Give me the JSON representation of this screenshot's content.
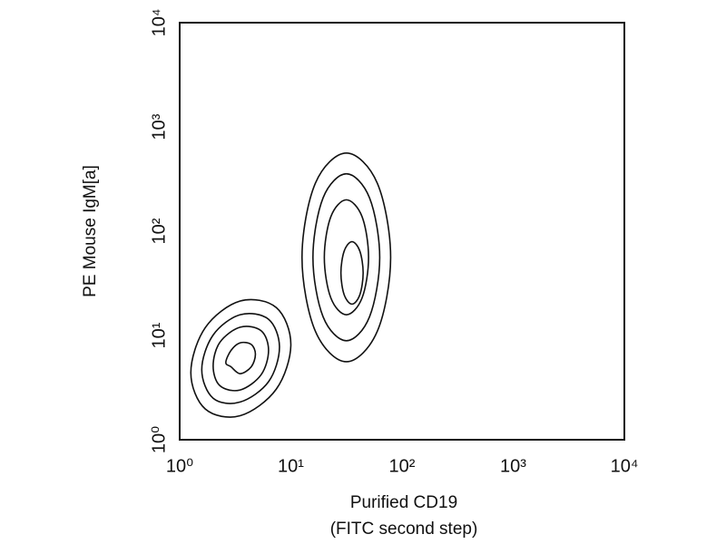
{
  "chart_data": {
    "type": "contour",
    "xlabel": [
      "Purified CD19",
      "(FITC second step)"
    ],
    "ylabel": "PE Mouse IgM[a]",
    "xscale": "log",
    "yscale": "log",
    "xlim": [
      1,
      10000
    ],
    "ylim": [
      1,
      10000
    ],
    "xticks": [
      {
        "value": 1,
        "label": "10⁰"
      },
      {
        "value": 10,
        "label": "10¹"
      },
      {
        "value": 100,
        "label": "10²"
      },
      {
        "value": 1000,
        "label": "10³"
      },
      {
        "value": 10000,
        "label": "10⁴"
      }
    ],
    "yticks": [
      {
        "value": 1,
        "label": "10⁰"
      },
      {
        "value": 10,
        "label": "10¹"
      },
      {
        "value": 100,
        "label": "10²"
      },
      {
        "value": 1000,
        "label": "10³"
      },
      {
        "value": 10000,
        "label": "10⁴"
      }
    ],
    "color": "#111111",
    "contours": [
      {
        "x": [
          10,
          7.4,
          3.5,
          1.7,
          1.26,
          1.7,
          3.5,
          7.4
        ],
        "y": [
          8.2,
          18.5,
          21.4,
          11.9,
          4.4,
          1.97,
          1.7,
          3.06
        ]
      },
      {
        "x": [
          7.9,
          6.3,
          3.5,
          2.0,
          1.58,
          2.0,
          3.5,
          6.3
        ],
        "y": [
          7.7,
          14.3,
          15.8,
          10.1,
          4.7,
          2.5,
          2.3,
          3.6
        ]
      },
      {
        "x": [
          6.3,
          5.4,
          3.5,
          2.3,
          2.0,
          2.3,
          3.5,
          5.4
        ],
        "y": [
          7.2,
          11.1,
          12.0,
          8.6,
          5.1,
          3.3,
          3.0,
          4.2
        ]
      },
      {
        "x": [
          4.8,
          4.4,
          3.5,
          2.9,
          2.6,
          2.9,
          3.5,
          4.4
        ],
        "y": [
          6.6,
          8.2,
          8.5,
          7.2,
          5.5,
          5.0,
          4.3,
          5.0
        ]
      },
      {
        "x": [
          79,
          60,
          31.6,
          16.6,
          12.6,
          16.6,
          31.6,
          60
        ],
        "y": [
          56,
          288,
          562,
          288,
          56,
          11,
          5.6,
          11
        ]
      },
      {
        "x": [
          63,
          51,
          31.6,
          19.5,
          15.8,
          19.5,
          31.6,
          51
        ],
        "y": [
          56,
          209,
          355,
          209,
          56,
          15.1,
          8.9,
          15.1
        ]
      },
      {
        "x": [
          50,
          43.7,
          31.6,
          22.9,
          20,
          22.9,
          31.6,
          43.7
        ],
        "y": [
          56,
          138,
          200,
          138,
          56,
          22.9,
          15.8,
          22.9
        ]
      },
      {
        "x": [
          44.7,
          41.7,
          35.5,
          30.2,
          28.2,
          30.2,
          35.5,
          41.7
        ],
        "y": [
          39.8,
          64.6,
          79.4,
          64.6,
          39.8,
          24.5,
          20,
          24.5
        ]
      }
    ]
  }
}
